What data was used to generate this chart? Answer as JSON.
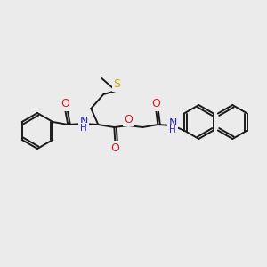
{
  "background_color": "#ebebeb",
  "bond_color": "#1a1a1a",
  "bond_width": 1.4,
  "atom_colors": {
    "C": "#1a1a1a",
    "H": "#1a1a1a",
    "N": "#2222cc",
    "O": "#cc2222",
    "S": "#ccaa00"
  },
  "figsize": [
    3.0,
    3.0
  ],
  "dpi": 100,
  "xlim": [
    0,
    300
  ],
  "ylim": [
    0,
    300
  ]
}
